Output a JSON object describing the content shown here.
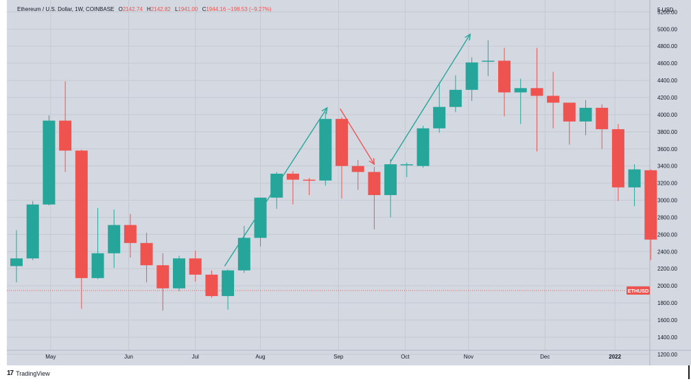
{
  "legend": {
    "symbol": "Ethereum / U.S. Dollar, 1W, COINBASE",
    "o_label": "O",
    "o_value": "2142.74",
    "h_label": "H",
    "h_value": "2142.82",
    "l_label": "L",
    "l_value": "1941.00",
    "c_label": "C",
    "c_value": "1944.16",
    "change": "−198.53 (−9.27%)"
  },
  "currency_label": "USD",
  "price_tag": "ETHUSD",
  "branding": "TradingView",
  "colors": {
    "up": "#26a69a",
    "down": "#ef5350",
    "background": "#d3d8e1",
    "grid": "#c4c9d3",
    "text": "#131722"
  },
  "chart_data": {
    "type": "candlestick",
    "title": "Ethereum / U.S. Dollar, 1W, COINBASE",
    "ylim": [
      1150,
      5420
    ],
    "y_ticks": [
      1200,
      1400,
      1600,
      1800,
      2000,
      2200,
      2400,
      2600,
      2800,
      3000,
      3200,
      3400,
      3600,
      3800,
      4000,
      4200,
      4400,
      4600,
      4800,
      5000,
      5200
    ],
    "y_tick_labels": [
      "1200.00",
      "1400.00",
      "1600.00",
      "1800.00",
      "2000.00",
      "2200.00",
      "2400.00",
      "2600.00",
      "2800.00",
      "3000.00",
      "3200.00",
      "3400.00",
      "3600.00",
      "3800.00",
      "4000.00",
      "4200.00",
      "4400.00",
      "4600.00",
      "4800.00",
      "5000.00",
      "5200.00"
    ],
    "x_labels": [
      {
        "label": "May",
        "index": 2.1
      },
      {
        "label": "Jun",
        "index": 6.9
      },
      {
        "label": "Jul",
        "index": 11.0
      },
      {
        "label": "Aug",
        "index": 15.0
      },
      {
        "label": "Sep",
        "index": 19.8
      },
      {
        "label": "Oct",
        "index": 23.9
      },
      {
        "label": "Nov",
        "index": 27.8
      },
      {
        "label": "Dec",
        "index": 32.5
      },
      {
        "label": "2022",
        "index": 36.8
      }
    ],
    "last_price": 1944.16,
    "candles": [
      {
        "o": 2230,
        "h": 2650,
        "l": 2040,
        "c": 2320
      },
      {
        "o": 2320,
        "h": 2990,
        "l": 2300,
        "c": 2950
      },
      {
        "o": 2950,
        "h": 3990,
        "l": 2940,
        "c": 3930
      },
      {
        "o": 3930,
        "h": 4390,
        "l": 3330,
        "c": 3580
      },
      {
        "o": 3580,
        "h": 3590,
        "l": 1730,
        "c": 2090
      },
      {
        "o": 2090,
        "h": 2910,
        "l": 2080,
        "c": 2380
      },
      {
        "o": 2380,
        "h": 2890,
        "l": 2210,
        "c": 2710
      },
      {
        "o": 2710,
        "h": 2840,
        "l": 2330,
        "c": 2500
      },
      {
        "o": 2500,
        "h": 2620,
        "l": 2040,
        "c": 2240
      },
      {
        "o": 2240,
        "h": 2380,
        "l": 1710,
        "c": 1970
      },
      {
        "o": 1970,
        "h": 2350,
        "l": 1940,
        "c": 2320
      },
      {
        "o": 2320,
        "h": 2410,
        "l": 2050,
        "c": 2130
      },
      {
        "o": 2130,
        "h": 2180,
        "l": 1860,
        "c": 1880
      },
      {
        "o": 1880,
        "h": 2190,
        "l": 1720,
        "c": 2180
      },
      {
        "o": 2180,
        "h": 2700,
        "l": 2150,
        "c": 2560
      },
      {
        "o": 2560,
        "h": 3030,
        "l": 2460,
        "c": 3030
      },
      {
        "o": 3030,
        "h": 3330,
        "l": 2900,
        "c": 3310
      },
      {
        "o": 3310,
        "h": 3340,
        "l": 2950,
        "c": 3240
      },
      {
        "o": 3240,
        "h": 3260,
        "l": 3060,
        "c": 3230
      },
      {
        "o": 3230,
        "h": 4030,
        "l": 3170,
        "c": 3950
      },
      {
        "o": 3950,
        "h": 3970,
        "l": 3020,
        "c": 3400
      },
      {
        "o": 3400,
        "h": 3470,
        "l": 3120,
        "c": 3330
      },
      {
        "o": 3330,
        "h": 3390,
        "l": 2660,
        "c": 3060
      },
      {
        "o": 3060,
        "h": 3480,
        "l": 2800,
        "c": 3420
      },
      {
        "o": 3420,
        "h": 3440,
        "l": 3270,
        "c": 3420
      },
      {
        "o": 3400,
        "h": 3870,
        "l": 3380,
        "c": 3840
      },
      {
        "o": 3840,
        "h": 4380,
        "l": 3790,
        "c": 4090
      },
      {
        "o": 4090,
        "h": 4460,
        "l": 4030,
        "c": 4290
      },
      {
        "o": 4290,
        "h": 4670,
        "l": 4160,
        "c": 4610
      },
      {
        "o": 4620,
        "h": 4870,
        "l": 4450,
        "c": 4630
      },
      {
        "o": 4630,
        "h": 4780,
        "l": 3980,
        "c": 4260
      },
      {
        "o": 4260,
        "h": 4420,
        "l": 3890,
        "c": 4310
      },
      {
        "o": 4310,
        "h": 4780,
        "l": 3570,
        "c": 4220
      },
      {
        "o": 4220,
        "h": 4500,
        "l": 3840,
        "c": 4140
      },
      {
        "o": 4140,
        "h": 4140,
        "l": 3650,
        "c": 3920
      },
      {
        "o": 3920,
        "h": 4170,
        "l": 3760,
        "c": 4080
      },
      {
        "o": 4080,
        "h": 4120,
        "l": 3600,
        "c": 3830
      },
      {
        "o": 3830,
        "h": 3890,
        "l": 2990,
        "c": 3150
      },
      {
        "o": 3150,
        "h": 3420,
        "l": 2930,
        "c": 3360
      },
      {
        "o": 3350,
        "h": 3360,
        "l": 2300,
        "c": 2540
      }
    ],
    "annotations": [
      {
        "type": "arrow",
        "color": "#26a69a",
        "from": {
          "index": 12.8,
          "price": 2230
        },
        "to": {
          "index": 19.1,
          "price": 4080
        }
      },
      {
        "type": "arrow",
        "color": "#ef5350",
        "from": {
          "index": 19.9,
          "price": 4070
        },
        "to": {
          "index": 22.0,
          "price": 3420
        }
      },
      {
        "type": "arrow",
        "color": "#26a69a",
        "from": {
          "index": 23.0,
          "price": 3450
        },
        "to": {
          "index": 27.9,
          "price": 4940
        }
      }
    ]
  }
}
